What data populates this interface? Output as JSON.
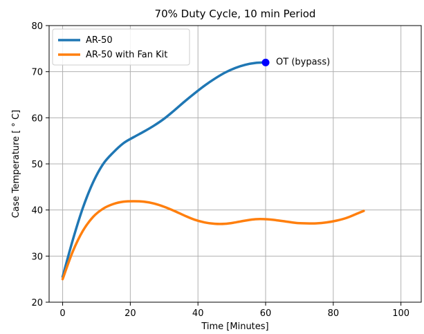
{
  "chart_data": {
    "type": "line",
    "title": "70% Duty Cycle, 10 min Period",
    "xlabel": "Time [Minutes]",
    "ylabel": "Case Temperature [ ° C]",
    "xlim": [
      -4,
      106
    ],
    "ylim": [
      20,
      80
    ],
    "xticks": [
      0,
      20,
      40,
      60,
      80,
      100
    ],
    "yticks": [
      20,
      30,
      40,
      50,
      60,
      70,
      80
    ],
    "grid": true,
    "legend_position": "top-left",
    "series": [
      {
        "name": "AR-50",
        "color": "#1f77b4",
        "x": [
          0,
          3,
          6,
          9,
          12,
          15,
          18,
          21,
          24,
          27,
          30,
          33,
          36,
          39,
          42,
          45,
          48,
          51,
          54,
          57,
          60
        ],
        "y": [
          25.5,
          33.5,
          40.5,
          46,
          50,
          52.5,
          54.5,
          55.8,
          57,
          58.3,
          59.8,
          61.6,
          63.5,
          65.3,
          67,
          68.5,
          69.8,
          70.8,
          71.5,
          71.9,
          72
        ]
      },
      {
        "name": "AR-50 with Fan Kit",
        "color": "#ff7f0e",
        "x": [
          0,
          3,
          6,
          9,
          12,
          15,
          18,
          21,
          24,
          27,
          30,
          33,
          36,
          39,
          42,
          45,
          48,
          51,
          54,
          57,
          60,
          63,
          66,
          69,
          72,
          75,
          78,
          81,
          84,
          87,
          89
        ],
        "y": [
          25,
          31,
          35.5,
          38.5,
          40.3,
          41.3,
          41.8,
          41.9,
          41.8,
          41.4,
          40.7,
          39.8,
          38.8,
          37.9,
          37.3,
          37,
          37,
          37.3,
          37.7,
          38,
          38,
          37.8,
          37.5,
          37.2,
          37.1,
          37.1,
          37.3,
          37.7,
          38.3,
          39.2,
          39.8
        ]
      }
    ],
    "annotation": {
      "text": "OT (bypass)",
      "x": 60,
      "y": 72,
      "marker_color": "#0000ff"
    }
  }
}
